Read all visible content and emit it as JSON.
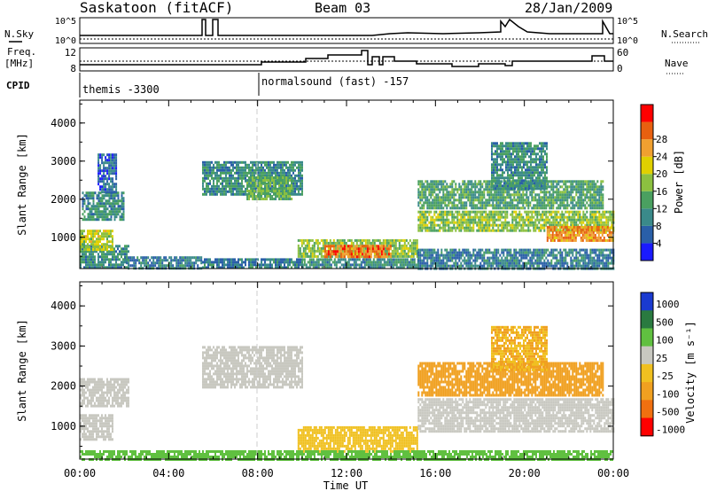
{
  "header": {
    "station": "Saskatoon (fitACF)",
    "beam": "Beam 03",
    "date": "28/Jan/2009"
  },
  "summary_panel": {
    "nsky_label": "N.Sky",
    "nsearch_label": "N.Search",
    "noise_ticks": [
      "10^5",
      "10^0"
    ],
    "freq_label_1": "Freq.",
    "freq_label_2": "[MHz]",
    "freq_ticks": [
      "12",
      "8"
    ],
    "nave_label": "Nave",
    "nave_ticks": [
      "60",
      "0"
    ],
    "cpid_label": "CPID",
    "cpid_entries": [
      {
        "time": "00:00",
        "text": "themis -3300"
      },
      {
        "time": "08:00",
        "text": "normalsound (fast) -157"
      }
    ]
  },
  "axes": {
    "xlabel": "Time UT",
    "ylabel": "Slant Range [km]",
    "x_ticks": [
      "00:00",
      "04:00",
      "08:00",
      "12:00",
      "16:00",
      "20:00",
      "00:00"
    ],
    "y_ticks": [
      "1000",
      "2000",
      "3000",
      "4000"
    ]
  },
  "power_colorbar": {
    "label": "Power [dB]",
    "ticks": [
      "4",
      "8",
      "12",
      "16",
      "20",
      "24",
      "28"
    ],
    "colors": [
      "#1a1aff",
      "#2a5fa8",
      "#3a8a8a",
      "#4aa060",
      "#8cc040",
      "#e0d000",
      "#f0a030",
      "#e86010",
      "#ff0000"
    ]
  },
  "velocity_colorbar": {
    "label": "Velocity [m s⁻¹]",
    "ticks": [
      "1000",
      "500",
      "100",
      "25",
      "-25",
      "-100",
      "-500",
      "-1000"
    ],
    "colors": [
      "#1a3ad0",
      "#2a7a40",
      "#60c040",
      "#c8c8c0",
      "#f0c020",
      "#f0a020",
      "#f07010",
      "#ff0000"
    ]
  },
  "chart_data": {
    "type": "heatmap",
    "x_range_hours": [
      0,
      24
    ],
    "y_range_km": [
      180,
      4600
    ],
    "power_regions": [
      {
        "t0": 0.0,
        "t1": 2.2,
        "r0": 200,
        "r1": 800,
        "power": 10
      },
      {
        "t0": 0.0,
        "t1": 1.5,
        "r0": 700,
        "r1": 1200,
        "power": 18
      },
      {
        "t0": 0.1,
        "t1": 2.0,
        "r0": 1500,
        "r1": 2200,
        "power": 10
      },
      {
        "t0": 0.8,
        "t1": 1.6,
        "r0": 2200,
        "r1": 3200,
        "power": 6
      },
      {
        "t0": 2.0,
        "t1": 5.5,
        "r0": 200,
        "r1": 500,
        "power": 8
      },
      {
        "t0": 5.5,
        "t1": 10.0,
        "r0": 2100,
        "r1": 3000,
        "power": 10
      },
      {
        "t0": 7.5,
        "t1": 9.5,
        "r0": 2000,
        "r1": 2600,
        "power": 14
      },
      {
        "t0": 5.5,
        "t1": 10.0,
        "r0": 200,
        "r1": 450,
        "power": 8
      },
      {
        "t0": 9.8,
        "t1": 15.2,
        "r0": 500,
        "r1": 950,
        "power": 16
      },
      {
        "t0": 11.0,
        "t1": 14.0,
        "r0": 500,
        "r1": 800,
        "power": 26
      },
      {
        "t0": 10.0,
        "t1": 15.2,
        "r0": 200,
        "r1": 450,
        "power": 10
      },
      {
        "t0": 15.2,
        "t1": 24.0,
        "r0": 1200,
        "r1": 1700,
        "power": 16
      },
      {
        "t0": 21.0,
        "t1": 24.0,
        "r0": 900,
        "r1": 1300,
        "power": 24
      },
      {
        "t0": 15.2,
        "t1": 23.5,
        "r0": 1800,
        "r1": 2500,
        "power": 12
      },
      {
        "t0": 18.5,
        "t1": 21.0,
        "r0": 2300,
        "r1": 3500,
        "power": 10
      },
      {
        "t0": 15.2,
        "t1": 24.0,
        "r0": 200,
        "r1": 700,
        "power": 8
      }
    ],
    "velocity_regions": [
      {
        "t0": 0.0,
        "t1": 1.5,
        "r0": 700,
        "r1": 1300,
        "velocity": 0
      },
      {
        "t0": 0.0,
        "t1": 2.2,
        "r0": 1500,
        "r1": 2200,
        "velocity": 0
      },
      {
        "t0": 5.5,
        "t1": 10.0,
        "r0": 2000,
        "r1": 3000,
        "velocity": 0
      },
      {
        "t0": 9.8,
        "t1": 15.2,
        "r0": 400,
        "r1": 1000,
        "velocity": -100
      },
      {
        "t0": 15.2,
        "t1": 24.0,
        "r0": 900,
        "r1": 1700,
        "velocity": 0
      },
      {
        "t0": 15.2,
        "t1": 23.5,
        "r0": 1800,
        "r1": 2600,
        "velocity": -150
      },
      {
        "t0": 18.5,
        "t1": 21.0,
        "r0": 2400,
        "r1": 3500,
        "velocity": -120
      },
      {
        "t0": 0.0,
        "t1": 24.0,
        "r0": 180,
        "r1": 400,
        "velocity": 60
      }
    ]
  }
}
